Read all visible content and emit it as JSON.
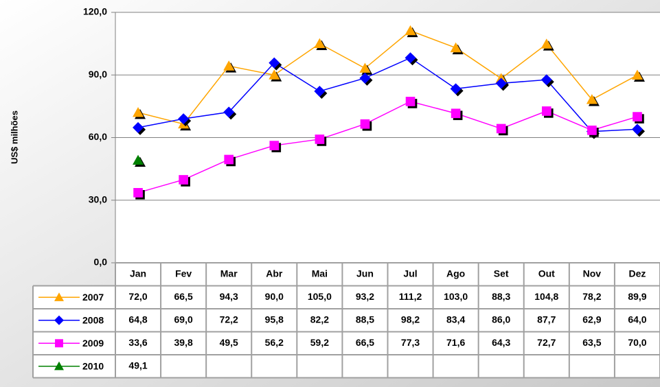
{
  "chart_data": {
    "type": "line",
    "y_label": "US$ milhões",
    "categories": [
      "Jan",
      "Fev",
      "Mar",
      "Abr",
      "Mai",
      "Jun",
      "Jul",
      "Ago",
      "Set",
      "Out",
      "Nov",
      "Dez"
    ],
    "series": [
      {
        "name": "2007",
        "color": "#ffa500",
        "marker": "triangle",
        "values": [
          72.0,
          66.5,
          94.3,
          90.0,
          105.0,
          93.2,
          111.2,
          103.0,
          88.3,
          104.8,
          78.2,
          89.9
        ],
        "value_labels": [
          "72,0",
          "66,5",
          "94,3",
          "90,0",
          "105,0",
          "93,2",
          "111,2",
          "103,0",
          "88,3",
          "104,8",
          "78,2",
          "89,9"
        ]
      },
      {
        "name": "2008",
        "color": "#0000ff",
        "marker": "diamond",
        "values": [
          64.8,
          69.0,
          72.2,
          95.8,
          82.2,
          88.5,
          98.2,
          83.4,
          86.0,
          87.7,
          62.9,
          64.0
        ],
        "value_labels": [
          "64,8",
          "69,0",
          "72,2",
          "95,8",
          "82,2",
          "88,5",
          "98,2",
          "83,4",
          "86,0",
          "87,7",
          "62,9",
          "64,0"
        ]
      },
      {
        "name": "2009",
        "color": "#ff00ff",
        "marker": "square",
        "values": [
          33.6,
          39.8,
          49.5,
          56.2,
          59.2,
          66.5,
          77.3,
          71.6,
          64.3,
          72.7,
          63.5,
          70.0
        ],
        "value_labels": [
          "33,6",
          "39,8",
          "49,5",
          "56,2",
          "59,2",
          "66,5",
          "77,3",
          "71,6",
          "64,3",
          "72,7",
          "63,5",
          "70,0"
        ]
      },
      {
        "name": "2010",
        "color": "#008000",
        "marker": "triangle",
        "values": [
          49.1,
          null,
          null,
          null,
          null,
          null,
          null,
          null,
          null,
          null,
          null,
          null
        ],
        "value_labels": [
          "49,1",
          null,
          null,
          null,
          null,
          null,
          null,
          null,
          null,
          null,
          null,
          null
        ]
      }
    ],
    "ylim": [
      0,
      120
    ],
    "yticks": [
      {
        "value": 0,
        "label": "0,0"
      },
      {
        "value": 30,
        "label": "30,0"
      },
      {
        "value": 60,
        "label": "60,0"
      },
      {
        "value": 90,
        "label": "90,0"
      },
      {
        "value": 120,
        "label": "120,0"
      }
    ],
    "grid": true
  }
}
